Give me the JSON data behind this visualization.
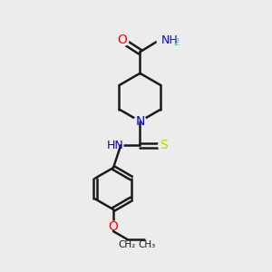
{
  "background_color": "#ececec",
  "bond_color": "#1a1a1a",
  "N_color": "#0000ff",
  "O_color": "#ff0000",
  "S_color": "#cccc00",
  "H_color": "#4db8b8",
  "figsize": [
    3.0,
    3.0
  ],
  "dpi": 100,
  "xlim": [
    0,
    10
  ],
  "ylim": [
    0,
    10
  ]
}
